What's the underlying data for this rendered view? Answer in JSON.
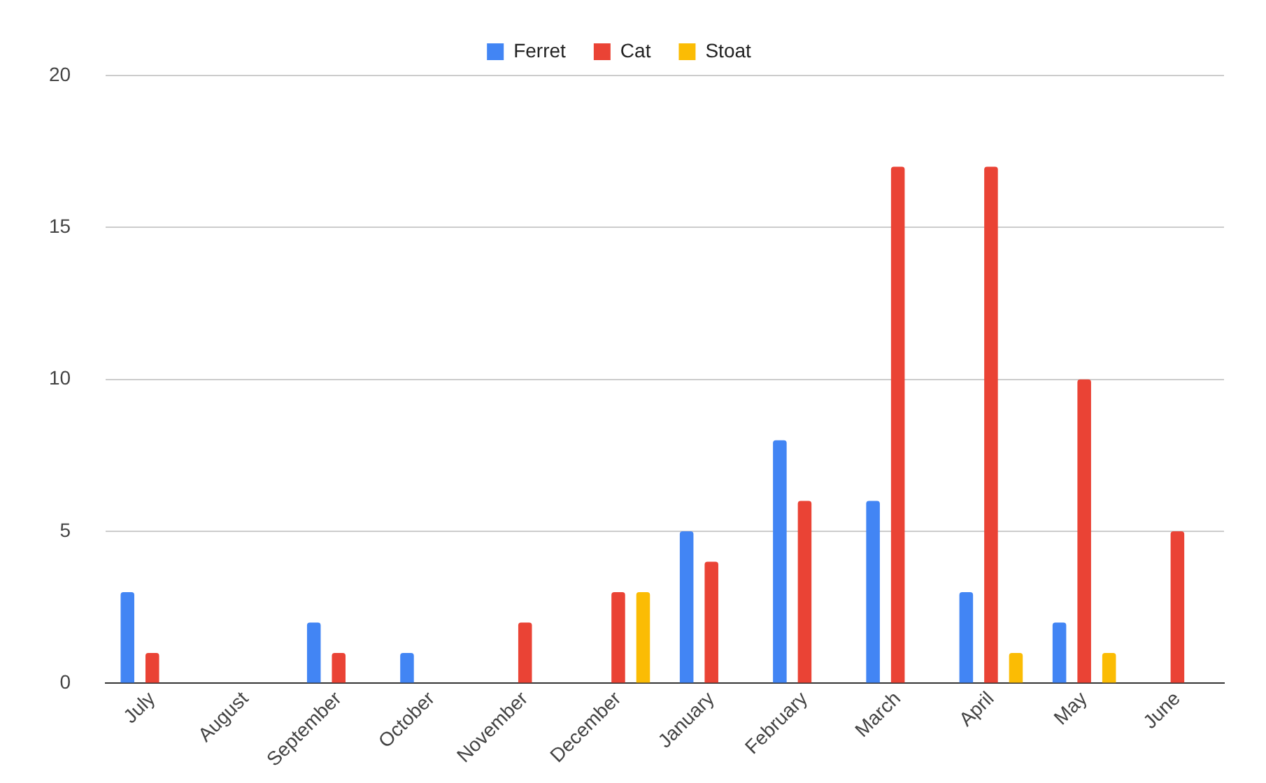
{
  "chart_data": {
    "type": "bar",
    "categories": [
      "July",
      "August",
      "September",
      "October",
      "November",
      "December",
      "January",
      "February",
      "March",
      "April",
      "May",
      "June"
    ],
    "series": [
      {
        "name": "Ferret",
        "color": "#4285f4",
        "values": [
          3,
          0,
          2,
          1,
          0,
          0,
          5,
          8,
          6,
          3,
          2,
          0
        ]
      },
      {
        "name": "Cat",
        "color": "#ea4335",
        "values": [
          1,
          0,
          1,
          0,
          2,
          3,
          4,
          6,
          17,
          17,
          10,
          5
        ]
      },
      {
        "name": "Stoat",
        "color": "#fbbc04",
        "values": [
          0,
          0,
          0,
          0,
          0,
          3,
          0,
          0,
          0,
          1,
          1,
          0
        ]
      }
    ],
    "ylim": [
      0,
      20
    ],
    "yticks": [
      0,
      5,
      10,
      15,
      20
    ],
    "grid": "y",
    "legend": "top"
  }
}
